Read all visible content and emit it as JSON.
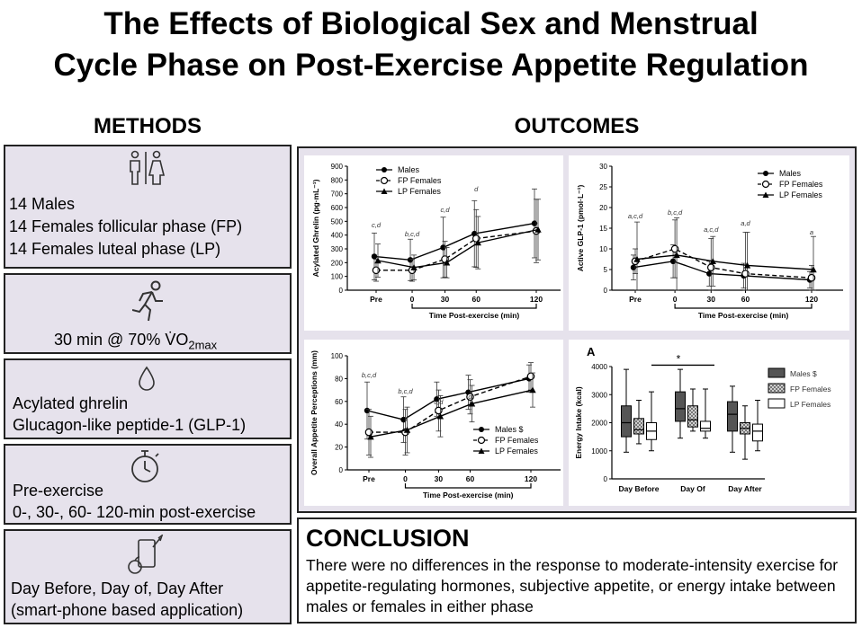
{
  "title": {
    "line1": "The Effects of Biological Sex and Menstrual",
    "line2": "Cycle Phase on Post-Exercise Appetite Regulation"
  },
  "methods": {
    "heading": "METHODS",
    "participants": {
      "icon": "people-icon",
      "lines": [
        "14 Males",
        "14 Females follicular phase (FP)",
        "14 Females luteal phase (LP)"
      ]
    },
    "exercise": {
      "icon": "runner-icon",
      "text_main": "30 min @ 70% V̇O",
      "text_sub": "2max"
    },
    "markers": {
      "icon": "blood-drop-icon",
      "lines": [
        "Acylated ghrelin",
        "Glucagon-like peptide-1 (GLP-1)"
      ]
    },
    "timing": {
      "icon": "stopwatch-icon",
      "lines": [
        "Pre-exercise",
        "0-, 30-, 60- 120-min post-exercise"
      ]
    },
    "intake": {
      "icon": "food-phone-icon",
      "lines": [
        "Day Before, Day of, Day After",
        "(smart-phone based application)"
      ]
    }
  },
  "outcomes": {
    "heading": "OUTCOMES"
  },
  "conclusion": {
    "heading": "CONCLUSION",
    "text": "There were no differences in the response to moderate-intensity exercise for appetite-regulating hormones, subjective appetite, or energy intake between males or females in either phase"
  },
  "chart_data": [
    {
      "type": "line",
      "ylabel": "Acylated Ghrelin (pg·mL⁻¹)",
      "xlabel": "Time Post-exercise (min)",
      "categories": [
        "Pre",
        "0",
        "30",
        "60",
        "120"
      ],
      "ylim": [
        0,
        900
      ],
      "yticks": [
        0,
        100,
        200,
        300,
        400,
        500,
        600,
        700,
        800,
        900
      ],
      "legend_position": "top-left",
      "annotations": [
        "c,d",
        "b,c,d",
        "c,d",
        "d",
        ""
      ],
      "series": [
        {
          "name": "Males",
          "marker": "filled-circle",
          "dash": "solid",
          "values": [
            245,
            220,
            310,
            410,
            485
          ],
          "err": [
            170,
            150,
            220,
            240,
            250
          ]
        },
        {
          "name": "FP Females",
          "marker": "open-circle",
          "dash": "dashed",
          "values": [
            145,
            145,
            225,
            375,
            430
          ],
          "err": [
            80,
            80,
            130,
            210,
            230
          ]
        },
        {
          "name": "LP Females",
          "marker": "triangle",
          "dash": "solid",
          "values": [
            215,
            165,
            200,
            345,
            440
          ],
          "err": [
            120,
            90,
            110,
            190,
            220
          ]
        }
      ]
    },
    {
      "type": "line",
      "ylabel": "Active GLP-1 (pmol·L⁻¹)",
      "xlabel": "Time Post-exercise (min)",
      "categories": [
        "Pre",
        "0",
        "30",
        "60",
        "120"
      ],
      "ylim": [
        0,
        30
      ],
      "yticks": [
        0,
        5,
        10,
        15,
        20,
        25,
        30
      ],
      "legend_position": "top-right",
      "annotations": [
        "a,c,d",
        "b,c,d",
        "a,c,d",
        "a,d",
        "a"
      ],
      "series": [
        {
          "name": "Males",
          "marker": "filled-circle",
          "dash": "solid",
          "values": [
            5.5,
            7.0,
            4.0,
            3.5,
            2.5
          ],
          "err": [
            3,
            4,
            3,
            3,
            2
          ]
        },
        {
          "name": "FP Females",
          "marker": "open-circle",
          "dash": "dashed",
          "values": [
            7.0,
            10.0,
            5.5,
            4.0,
            3.0
          ],
          "err": [
            3,
            7,
            7,
            10,
            3
          ]
        },
        {
          "name": "LP Females",
          "marker": "triangle",
          "dash": "solid",
          "values": [
            7.5,
            8.5,
            7.0,
            6.0,
            5.0
          ],
          "err": [
            9,
            9,
            6,
            8,
            8
          ]
        }
      ]
    },
    {
      "type": "line",
      "ylabel": "Overall Appetite Perceptions (mm)",
      "xlabel": "Time Post-exercise (min)",
      "categories": [
        "Pre",
        "0",
        "30",
        "60",
        "120"
      ],
      "ylim": [
        0,
        100
      ],
      "yticks": [
        0,
        20,
        40,
        60,
        80,
        100
      ],
      "legend_position": "bottom-right",
      "annotations": [
        "b,c,d",
        "b,c,d",
        "c,d",
        "d",
        ""
      ],
      "series": [
        {
          "name": "Males $",
          "marker": "filled-circle",
          "dash": "solid",
          "values": [
            52,
            44,
            62,
            68,
            80
          ],
          "err": [
            25,
            20,
            15,
            15,
            12
          ]
        },
        {
          "name": "FP Females",
          "marker": "open-circle",
          "dash": "dashed",
          "values": [
            33,
            33,
            52,
            64,
            82
          ],
          "err": [
            20,
            20,
            18,
            15,
            12
          ]
        },
        {
          "name": "LP Females",
          "marker": "triangle",
          "dash": "solid",
          "values": [
            29,
            35,
            47,
            58,
            70
          ],
          "err": [
            18,
            20,
            18,
            16,
            15
          ]
        }
      ]
    },
    {
      "type": "bar",
      "chart_kind": "boxplot",
      "panel_label": "A",
      "ylabel": "Energy Intake (kcal)",
      "categories": [
        "Day Before",
        "Day Of",
        "Day After"
      ],
      "ylim": [
        0,
        4000
      ],
      "yticks": [
        0,
        1000,
        2000,
        3000,
        4000
      ],
      "legend_position": "top-right",
      "significance": "*",
      "series": [
        {
          "name": "Males $",
          "color": "#555555",
          "boxes": [
            {
              "min": 950,
              "q1": 1500,
              "median": 2000,
              "q3": 2600,
              "max": 3900
            },
            {
              "min": 1450,
              "q1": 2050,
              "median": 2500,
              "q3": 3100,
              "max": 3900
            },
            {
              "min": 950,
              "q1": 1700,
              "median": 2300,
              "q3": 2750,
              "max": 3300
            }
          ]
        },
        {
          "name": "FP Females",
          "color": "#bdbdbd",
          "boxes": [
            {
              "min": 1250,
              "q1": 1600,
              "median": 1750,
              "q3": 2150,
              "max": 2800
            },
            {
              "min": 1700,
              "q1": 1850,
              "median": 2100,
              "q3": 2600,
              "max": 3200
            },
            {
              "min": 700,
              "q1": 1600,
              "median": 1800,
              "q3": 2000,
              "max": 2600
            }
          ]
        },
        {
          "name": "LP Females",
          "color": "#ffffff",
          "boxes": [
            {
              "min": 1000,
              "q1": 1400,
              "median": 1700,
              "q3": 2000,
              "max": 3100
            },
            {
              "min": 1450,
              "q1": 1700,
              "median": 1800,
              "q3": 2050,
              "max": 3200
            },
            {
              "min": 1000,
              "q1": 1350,
              "median": 1700,
              "q3": 1950,
              "max": 2800
            }
          ]
        }
      ]
    }
  ]
}
